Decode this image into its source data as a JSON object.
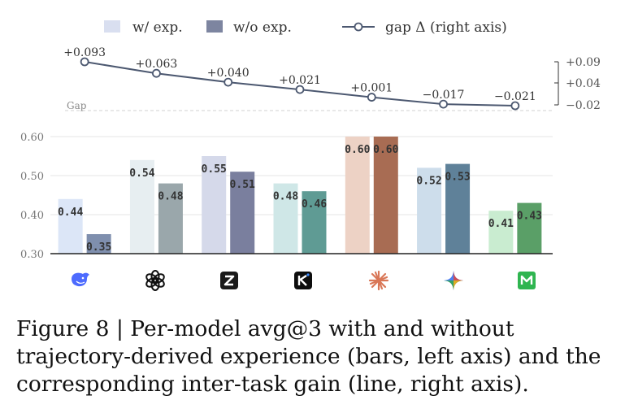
{
  "chart_data": {
    "type": "bar",
    "legend": {
      "placement": "top",
      "with_label": "w/ exp.",
      "without_label": "w/o exp.",
      "gap_label": "gap Δ (right axis)"
    },
    "categories": [
      "DeepSeek",
      "OpenAI",
      "Zhipu",
      "Kimi",
      "Claude",
      "Gemini",
      "MiniMax"
    ],
    "category_icons": [
      "deepseek-icon",
      "openai-icon",
      "zhipu-icon",
      "kimi-icon",
      "claude-icon",
      "gemini-icon",
      "minimax-icon"
    ],
    "series": [
      {
        "name": "w/ exp.",
        "values": [
          0.44,
          0.54,
          0.55,
          0.48,
          0.6,
          0.52,
          0.41
        ]
      },
      {
        "name": "w/o exp.",
        "values": [
          0.35,
          0.48,
          0.51,
          0.46,
          0.6,
          0.53,
          0.43
        ]
      }
    ],
    "bar_labels_with": [
      "0.44",
      "0.54",
      "0.55",
      "0.48",
      "0.60",
      "0.52",
      "0.41"
    ],
    "bar_labels_without": [
      "0.35",
      "0.48",
      "0.51",
      "0.46",
      "0.60",
      "0.53",
      "0.43"
    ],
    "colors_with": [
      "#dce6f7",
      "#e7eef1",
      "#d5d9ea",
      "#cfe7e7",
      "#edd2c5",
      "#cdddeb",
      "#c9ecd0"
    ],
    "colors_without": [
      "#7f8fae",
      "#9aa7ab",
      "#7a7f9e",
      "#5f9b94",
      "#a86c53",
      "#5f8199",
      "#5a9f67"
    ],
    "legend_colors": {
      "with": "#d9dff0",
      "without": "#7d85a0",
      "line": "#4c5870"
    },
    "left_axis": {
      "ylim": [
        0.3,
        0.6
      ],
      "ticks": [
        "0.30",
        "0.40",
        "0.50",
        "0.60"
      ]
    },
    "gap": {
      "values": [
        0.093,
        0.063,
        0.04,
        0.021,
        0.001,
        -0.017,
        -0.021
      ],
      "labels": [
        "+0.093",
        "+0.063",
        "+0.040",
        "+0.021",
        "+0.001",
        "−0.017",
        "−0.021"
      ],
      "baseline_label": "Gap",
      "right_axis_ticks": [
        "+0.09",
        "+0.04",
        "−0.02"
      ]
    },
    "grid": true
  },
  "caption": {
    "text": "Figure 8 | Per-model avg@3 with and without trajectory-derived experience (bars, left axis) and the corresponding inter-task gain (line, right axis)."
  }
}
